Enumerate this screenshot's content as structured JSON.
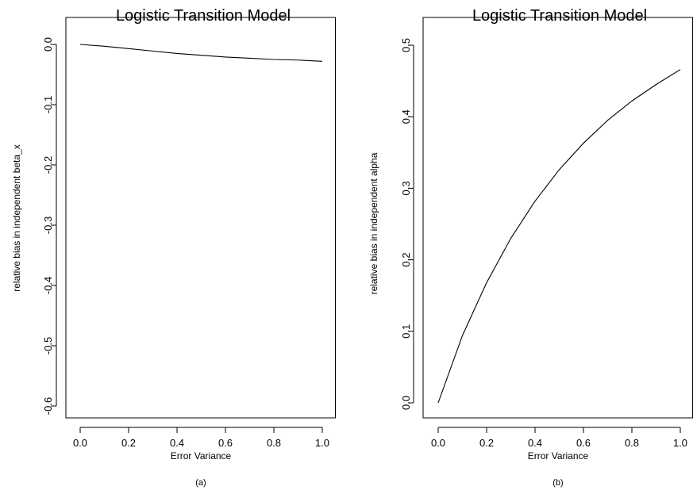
{
  "chart_data": [
    {
      "type": "line",
      "title": "Logistic Transition Model",
      "xlabel": "Error Variance",
      "ylabel": "relative bias in independent beta_x",
      "caption": "(a)",
      "xlim": [
        0.0,
        1.0
      ],
      "ylim": [
        -0.6,
        0.0
      ],
      "xticks": [
        "0.0",
        "0.2",
        "0.4",
        "0.6",
        "0.8",
        "1.0"
      ],
      "yticks": [
        "0.0",
        "-0.1",
        "-0.2",
        "-0.3",
        "-0.4",
        "-0.5",
        "-0.6"
      ],
      "grid": false,
      "legend": "none",
      "series": [
        {
          "x": [
            0.0,
            0.1,
            0.2,
            0.3,
            0.4,
            0.5,
            0.6,
            0.7,
            0.8,
            0.9,
            1.0
          ],
          "y": [
            0.0,
            -0.003,
            -0.007,
            -0.011,
            -0.015,
            -0.018,
            -0.021,
            -0.023,
            -0.025,
            -0.026,
            -0.028
          ]
        }
      ]
    },
    {
      "type": "line",
      "title": "Logistic Transition Model",
      "xlabel": "Error Variance",
      "ylabel": "relative bias in independent alpha",
      "caption": "(b)",
      "xlim": [
        0.0,
        1.0
      ],
      "ylim": [
        0.0,
        0.5
      ],
      "xticks": [
        "0.0",
        "0.2",
        "0.4",
        "0.6",
        "0.8",
        "1.0"
      ],
      "yticks": [
        "0.0",
        "0.1",
        "0.2",
        "0.3",
        "0.4",
        "0.5"
      ],
      "grid": false,
      "legend": "none",
      "series": [
        {
          "x": [
            0.0,
            0.1,
            0.2,
            0.3,
            0.4,
            0.5,
            0.6,
            0.7,
            0.8,
            0.9,
            1.0
          ],
          "y": [
            0.0,
            0.094,
            0.168,
            0.23,
            0.282,
            0.326,
            0.363,
            0.395,
            0.422,
            0.445,
            0.466
          ]
        }
      ]
    }
  ]
}
